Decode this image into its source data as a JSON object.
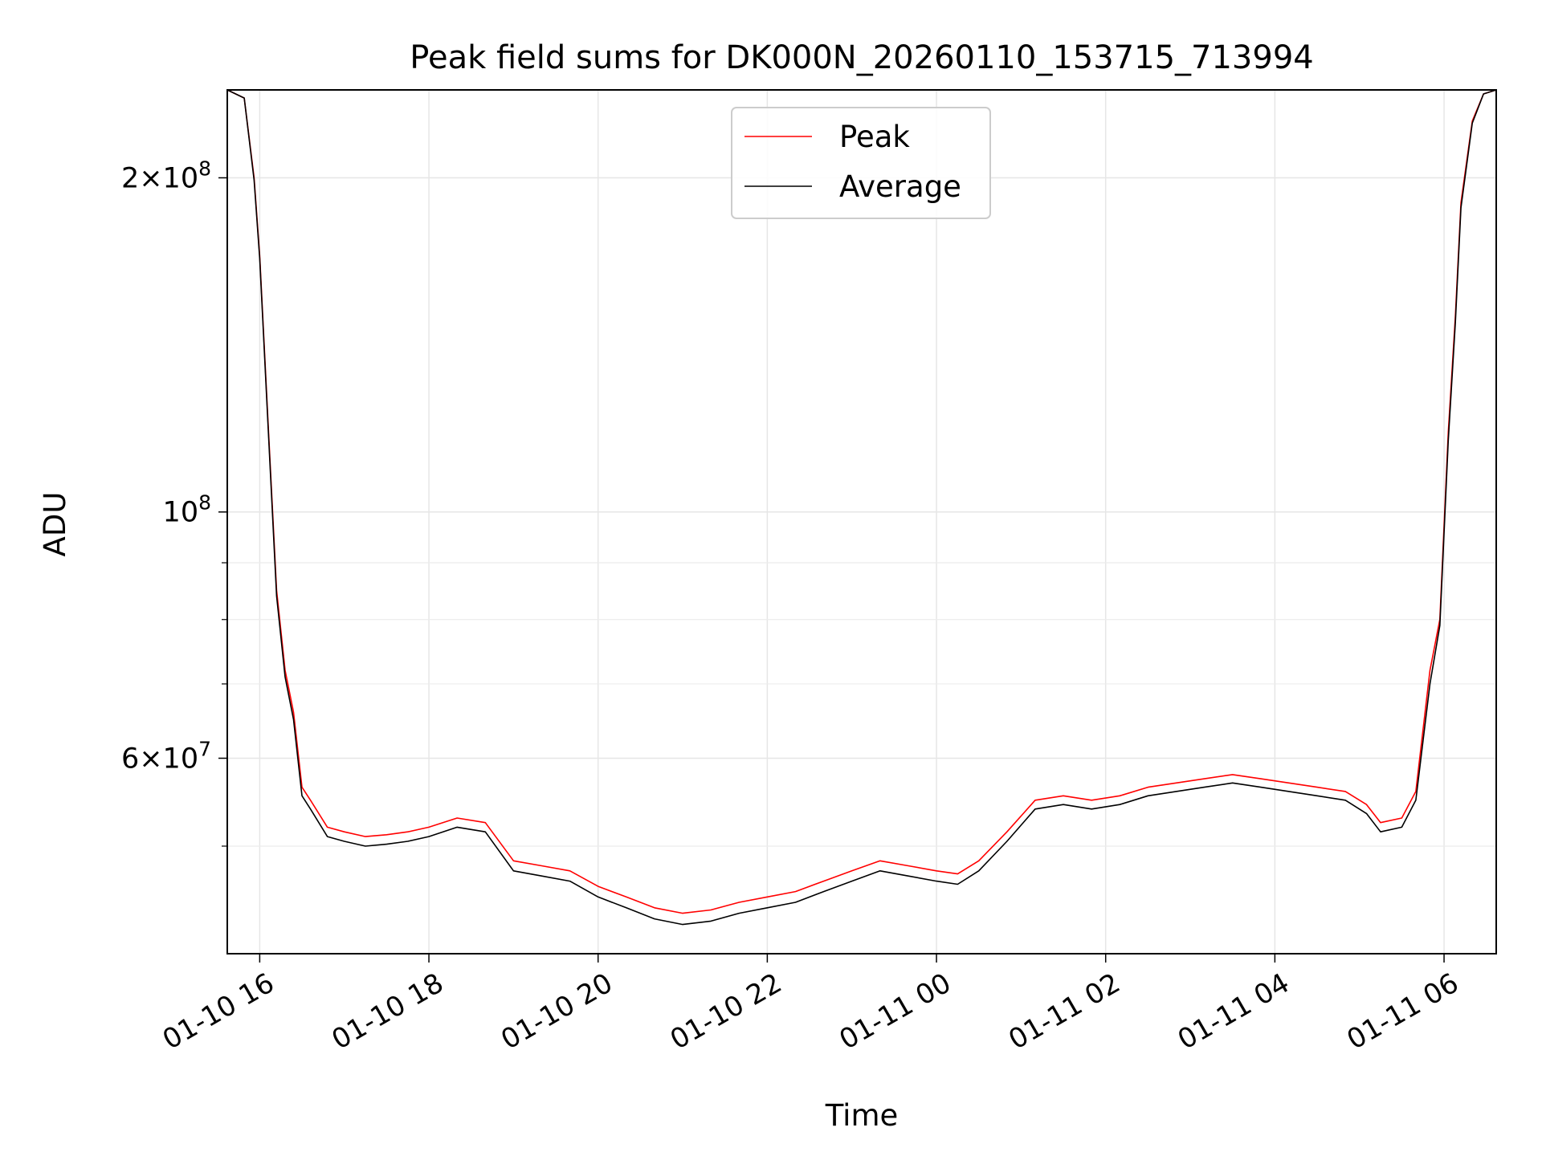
{
  "chart_data": {
    "type": "line",
    "title": "Peak field sums for DK000N_20260110_153715_713994",
    "xlabel": "Time",
    "ylabel": "ADU",
    "x_range": [
      "2026-01-10 15:37",
      "2026-01-11 06:37"
    ],
    "y_scale": "log",
    "ylim": [
      40000000,
      240000000
    ],
    "grid": true,
    "legend": "upper center",
    "x_ticks": [
      "2026-01-10 16:00",
      "2026-01-10 18:00",
      "2026-01-10 20:00",
      "2026-01-10 22:00",
      "2026-01-11 00:00",
      "2026-01-11 02:00",
      "2026-01-11 04:00",
      "2026-01-11 06:00"
    ],
    "x_tick_labels": [
      "01-10 16",
      "01-10 18",
      "01-10 20",
      "01-10 22",
      "01-11 00",
      "01-11 02",
      "01-11 04",
      "01-11 06"
    ],
    "y_ticks": [
      200000000,
      100000000,
      60000000
    ],
    "y_minor_ticks": [
      50000000,
      70000000,
      80000000,
      90000000
    ],
    "series": [
      {
        "name": "Peak",
        "color": "#ff0000",
        "points": [
          [
            "2026-01-10 15:37",
            240000000
          ],
          [
            "2026-01-10 15:49",
            236000000
          ],
          [
            "2026-01-10 15:56",
            200000000
          ],
          [
            "2026-01-10 16:00",
            170000000
          ],
          [
            "2026-01-10 16:06",
            120000000
          ],
          [
            "2026-01-10 16:12",
            85000000
          ],
          [
            "2026-01-10 16:18",
            72000000
          ],
          [
            "2026-01-10 16:24",
            66000000
          ],
          [
            "2026-01-10 16:30",
            56500000
          ],
          [
            "2026-01-10 16:36",
            55000000
          ],
          [
            "2026-01-10 16:48",
            52000000
          ],
          [
            "2026-01-10 17:00",
            51500000
          ],
          [
            "2026-01-10 17:15",
            51000000
          ],
          [
            "2026-01-10 17:30",
            51200000
          ],
          [
            "2026-01-10 17:45",
            51500000
          ],
          [
            "2026-01-10 18:00",
            52000000
          ],
          [
            "2026-01-10 18:20",
            53000000
          ],
          [
            "2026-01-10 18:40",
            52500000
          ],
          [
            "2026-01-10 19:00",
            48500000
          ],
          [
            "2026-01-10 19:20",
            48000000
          ],
          [
            "2026-01-10 19:40",
            47500000
          ],
          [
            "2026-01-10 20:00",
            46000000
          ],
          [
            "2026-01-10 20:20",
            45000000
          ],
          [
            "2026-01-10 20:40",
            44000000
          ],
          [
            "2026-01-10 21:00",
            43500000
          ],
          [
            "2026-01-10 21:20",
            43800000
          ],
          [
            "2026-01-10 21:40",
            44500000
          ],
          [
            "2026-01-10 22:00",
            45000000
          ],
          [
            "2026-01-10 22:20",
            45500000
          ],
          [
            "2026-01-10 22:40",
            46500000
          ],
          [
            "2026-01-10 23:00",
            47500000
          ],
          [
            "2026-01-10 23:20",
            48500000
          ],
          [
            "2026-01-10 23:40",
            48000000
          ],
          [
            "2026-01-11 00:00",
            47500000
          ],
          [
            "2026-01-11 00:15",
            47200000
          ],
          [
            "2026-01-11 00:30",
            48500000
          ],
          [
            "2026-01-11 00:50",
            51500000
          ],
          [
            "2026-01-11 01:10",
            55000000
          ],
          [
            "2026-01-11 01:30",
            55500000
          ],
          [
            "2026-01-11 01:50",
            55000000
          ],
          [
            "2026-01-11 02:10",
            55500000
          ],
          [
            "2026-01-11 02:30",
            56500000
          ],
          [
            "2026-01-11 02:50",
            57000000
          ],
          [
            "2026-01-11 03:10",
            57500000
          ],
          [
            "2026-01-11 03:30",
            58000000
          ],
          [
            "2026-01-11 03:50",
            57500000
          ],
          [
            "2026-01-11 04:10",
            57000000
          ],
          [
            "2026-01-11 04:30",
            56500000
          ],
          [
            "2026-01-11 04:50",
            56000000
          ],
          [
            "2026-01-11 05:05",
            54500000
          ],
          [
            "2026-01-11 05:15",
            52500000
          ],
          [
            "2026-01-11 05:30",
            53000000
          ],
          [
            "2026-01-11 05:40",
            56000000
          ],
          [
            "2026-01-11 05:50",
            72000000
          ],
          [
            "2026-01-11 05:57",
            80000000
          ],
          [
            "2026-01-11 06:03",
            118000000
          ],
          [
            "2026-01-11 06:08",
            150000000
          ],
          [
            "2026-01-11 06:12",
            190000000
          ],
          [
            "2026-01-11 06:20",
            225000000
          ],
          [
            "2026-01-11 06:28",
            238000000
          ],
          [
            "2026-01-11 06:37",
            240000000
          ]
        ]
      },
      {
        "name": "Average",
        "color": "#000000",
        "points": [
          [
            "2026-01-10 15:37",
            240000000
          ],
          [
            "2026-01-10 15:49",
            236000000
          ],
          [
            "2026-01-10 15:56",
            199000000
          ],
          [
            "2026-01-10 16:00",
            169000000
          ],
          [
            "2026-01-10 16:06",
            119000000
          ],
          [
            "2026-01-10 16:12",
            84000000
          ],
          [
            "2026-01-10 16:18",
            71000000
          ],
          [
            "2026-01-10 16:24",
            65000000
          ],
          [
            "2026-01-10 16:30",
            55500000
          ],
          [
            "2026-01-10 16:36",
            54000000
          ],
          [
            "2026-01-10 16:48",
            51000000
          ],
          [
            "2026-01-10 17:00",
            50500000
          ],
          [
            "2026-01-10 17:15",
            50000000
          ],
          [
            "2026-01-10 17:30",
            50200000
          ],
          [
            "2026-01-10 17:45",
            50500000
          ],
          [
            "2026-01-10 18:00",
            51000000
          ],
          [
            "2026-01-10 18:20",
            52000000
          ],
          [
            "2026-01-10 18:40",
            51500000
          ],
          [
            "2026-01-10 19:00",
            47500000
          ],
          [
            "2026-01-10 19:20",
            47000000
          ],
          [
            "2026-01-10 19:40",
            46500000
          ],
          [
            "2026-01-10 20:00",
            45000000
          ],
          [
            "2026-01-10 20:20",
            44000000
          ],
          [
            "2026-01-10 20:40",
            43000000
          ],
          [
            "2026-01-10 21:00",
            42500000
          ],
          [
            "2026-01-10 21:20",
            42800000
          ],
          [
            "2026-01-10 21:40",
            43500000
          ],
          [
            "2026-01-10 22:00",
            44000000
          ],
          [
            "2026-01-10 22:20",
            44500000
          ],
          [
            "2026-01-10 22:40",
            45500000
          ],
          [
            "2026-01-10 23:00",
            46500000
          ],
          [
            "2026-01-10 23:20",
            47500000
          ],
          [
            "2026-01-10 23:40",
            47000000
          ],
          [
            "2026-01-11 00:00",
            46500000
          ],
          [
            "2026-01-11 00:15",
            46200000
          ],
          [
            "2026-01-11 00:30",
            47500000
          ],
          [
            "2026-01-11 00:50",
            50500000
          ],
          [
            "2026-01-11 01:10",
            54000000
          ],
          [
            "2026-01-11 01:30",
            54500000
          ],
          [
            "2026-01-11 01:50",
            54000000
          ],
          [
            "2026-01-11 02:10",
            54500000
          ],
          [
            "2026-01-11 02:30",
            55500000
          ],
          [
            "2026-01-11 02:50",
            56000000
          ],
          [
            "2026-01-11 03:10",
            56500000
          ],
          [
            "2026-01-11 03:30",
            57000000
          ],
          [
            "2026-01-11 03:50",
            56500000
          ],
          [
            "2026-01-11 04:10",
            56000000
          ],
          [
            "2026-01-11 04:30",
            55500000
          ],
          [
            "2026-01-11 04:50",
            55000000
          ],
          [
            "2026-01-11 05:05",
            53500000
          ],
          [
            "2026-01-11 05:15",
            51500000
          ],
          [
            "2026-01-11 05:30",
            52000000
          ],
          [
            "2026-01-11 05:40",
            55000000
          ],
          [
            "2026-01-11 05:50",
            70000000
          ],
          [
            "2026-01-11 05:57",
            79000000
          ],
          [
            "2026-01-11 06:03",
            116000000
          ],
          [
            "2026-01-11 06:08",
            148000000
          ],
          [
            "2026-01-11 06:12",
            188000000
          ],
          [
            "2026-01-11 06:20",
            224000000
          ],
          [
            "2026-01-11 06:28",
            238000000
          ],
          [
            "2026-01-11 06:37",
            240000000
          ]
        ]
      }
    ]
  }
}
